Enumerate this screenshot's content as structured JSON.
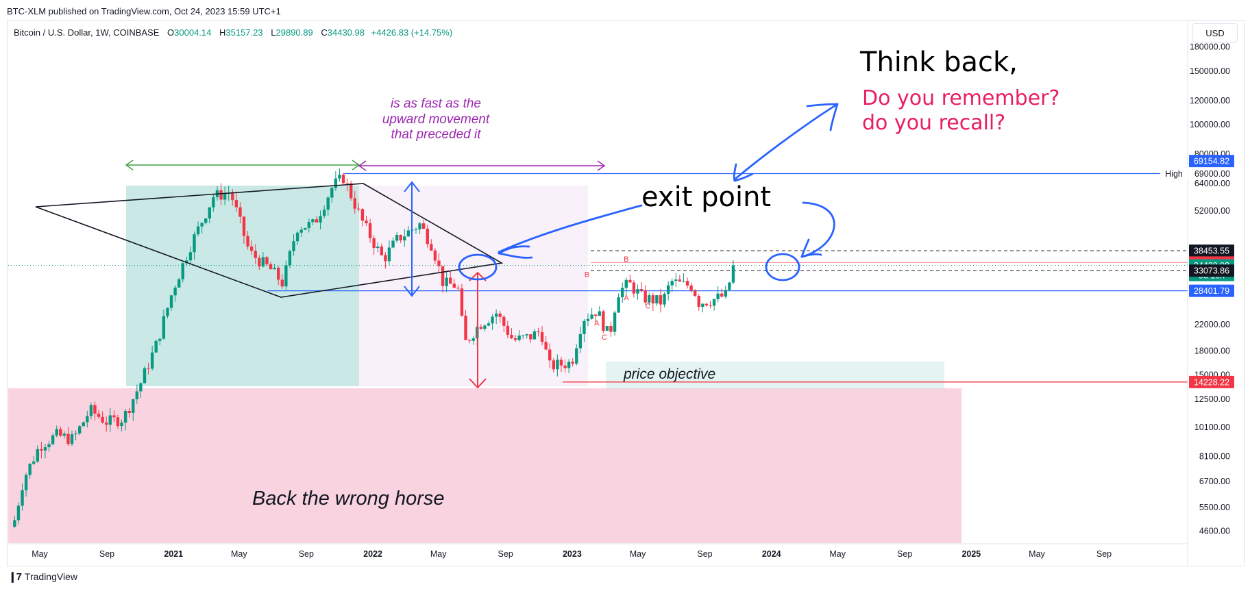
{
  "header": {
    "published": "BTC-XLM published on TradingView.com, Oct 24, 2023 15:59 UTC+1",
    "symbol": "Bitcoin / U.S. Dollar, 1W, COINBASE",
    "open_label": "O",
    "open": "30004.14",
    "high_label": "H",
    "high": "35157.23",
    "low_label": "L",
    "low": "29890.89",
    "close_label": "C",
    "close": "34430.98",
    "change": "+4426.83 (+14.75%)",
    "currency": "USD"
  },
  "footer": {
    "brand": "TradingView",
    "logo": "tradingview-logo-icon"
  },
  "chart_data": {
    "type": "candlestick",
    "symbol": "BTC/USD",
    "interval": "1W",
    "y_scale": "log",
    "ylim": [
      4200,
      220000
    ],
    "y_ticks": [
      4600,
      5500,
      6700,
      8100,
      10100,
      12500,
      15000,
      18000,
      22000,
      28000,
      52000,
      64000,
      80000,
      100000,
      120000,
      150000,
      180000
    ],
    "y_tick_labels": [
      "4600.00",
      "5500.00",
      "6700.00",
      "8100.00",
      "10100.00",
      "12500.00",
      "15000.00",
      "18000.00",
      "22000.00",
      "28000.00",
      "52000.00",
      "64000.00",
      "80000.00",
      "100000.00",
      "120000.00",
      "150000.00",
      "180000.00"
    ],
    "x_ticks": [
      {
        "label": "May",
        "date": "2020-05",
        "bold": false
      },
      {
        "label": "Sep",
        "date": "2020-09",
        "bold": false
      },
      {
        "label": "2021",
        "date": "2021-01",
        "bold": true
      },
      {
        "label": "May",
        "date": "2021-05",
        "bold": false
      },
      {
        "label": "Sep",
        "date": "2021-09",
        "bold": false
      },
      {
        "label": "2022",
        "date": "2022-01",
        "bold": true
      },
      {
        "label": "May",
        "date": "2022-05",
        "bold": false
      },
      {
        "label": "Sep",
        "date": "2022-09",
        "bold": false
      },
      {
        "label": "2023",
        "date": "2023-01",
        "bold": true
      },
      {
        "label": "May",
        "date": "2023-05",
        "bold": false
      },
      {
        "label": "Sep",
        "date": "2023-09",
        "bold": false
      },
      {
        "label": "2024",
        "date": "2024-01",
        "bold": true
      },
      {
        "label": "May",
        "date": "2024-05",
        "bold": false
      },
      {
        "label": "Sep",
        "date": "2024-09",
        "bold": false
      },
      {
        "label": "2025",
        "date": "2025-01",
        "bold": true
      },
      {
        "label": "May",
        "date": "2025-05",
        "bold": false
      },
      {
        "label": "Sep",
        "date": "2025-09",
        "bold": false
      }
    ],
    "price_path": [
      [
        "2020-03-16",
        5000
      ],
      [
        "2020-04-01",
        6800
      ],
      [
        "2020-05-01",
        8800
      ],
      [
        "2020-06-01",
        9500
      ],
      [
        "2020-07-01",
        9200
      ],
      [
        "2020-08-01",
        11500
      ],
      [
        "2020-09-01",
        10500
      ],
      [
        "2020-10-01",
        10800
      ],
      [
        "2020-11-01",
        14000
      ],
      [
        "2020-12-01",
        19000
      ],
      [
        "2021-01-01",
        29000
      ],
      [
        "2021-02-01",
        40000
      ],
      [
        "2021-03-15",
        58000
      ],
      [
        "2021-04-15",
        60000
      ],
      [
        "2021-05-20",
        38000
      ],
      [
        "2021-07-01",
        33000
      ],
      [
        "2021-07-20",
        30000
      ],
      [
        "2021-08-15",
        46000
      ],
      [
        "2021-09-15",
        47000
      ],
      [
        "2021-10-20",
        63000
      ],
      [
        "2021-11-08",
        67000
      ],
      [
        "2021-12-15",
        47000
      ],
      [
        "2022-01-20",
        36000
      ],
      [
        "2022-02-15",
        42000
      ],
      [
        "2022-03-28",
        47000
      ],
      [
        "2022-04-20",
        40000
      ],
      [
        "2022-05-10",
        30000
      ],
      [
        "2022-06-05",
        29500
      ],
      [
        "2022-06-18",
        19000
      ],
      [
        "2022-07-15",
        22000
      ],
      [
        "2022-08-15",
        24000
      ],
      [
        "2022-09-15",
        19500
      ],
      [
        "2022-10-15",
        20000
      ],
      [
        "2022-11-05",
        21000
      ],
      [
        "2022-11-20",
        16000
      ],
      [
        "2022-12-31",
        16500
      ],
      [
        "2023-01-20",
        23000
      ],
      [
        "2023-02-15",
        24500
      ],
      [
        "2023-03-10",
        20000
      ],
      [
        "2023-03-25",
        28000
      ],
      [
        "2023-04-15",
        30000
      ],
      [
        "2023-05-10",
        27000
      ],
      [
        "2023-06-15",
        26000
      ],
      [
        "2023-07-01",
        30500
      ],
      [
        "2023-07-20",
        29800
      ],
      [
        "2023-08-10",
        29500
      ],
      [
        "2023-08-20",
        26000
      ],
      [
        "2023-09-15",
        26500
      ],
      [
        "2023-10-10",
        27500
      ],
      [
        "2023-10-24",
        34430
      ]
    ],
    "price_labels": [
      {
        "value": 69154.82,
        "text": "69154.82",
        "bg": "#2962ff",
        "color": "#ffffff"
      },
      {
        "value": 38453.55,
        "text": "38453.55",
        "bg": "#131722",
        "color": "#ffffff"
      },
      {
        "value": 35176.2,
        "text": "35176.20",
        "bg": "#f23645",
        "color": "#ffffff"
      },
      {
        "value": 34430.98,
        "text": "34430.98",
        "sub": "5d 10h",
        "bg": "#089981",
        "color": "#ffffff"
      },
      {
        "value": 33073.86,
        "text": "33073.86",
        "bg": "#131722",
        "color": "#ffffff"
      },
      {
        "value": 28401.79,
        "text": "28401.79",
        "bg": "#2962ff",
        "color": "#ffffff"
      },
      {
        "value": 14228.22,
        "text": "14228.22",
        "bg": "#f23645",
        "color": "#ffffff"
      }
    ],
    "horizontal_lines": [
      {
        "name": "high",
        "value": 69000,
        "label_right": "High",
        "label_axis": "69000.00",
        "color": "#2962ff",
        "from": "2021-11-08"
      },
      {
        "name": "support",
        "value": 28401.79,
        "color": "#2962ff",
        "from": "2021-06-22"
      },
      {
        "name": "target",
        "value": 14228.22,
        "color": "#f23645",
        "from": "2022-12-15"
      }
    ],
    "dashed_levels": [
      38453.55,
      33073.86
    ],
    "annotations": {
      "think_back": "Think back,",
      "remember": "Do you remember?",
      "recall": "do you recall?",
      "exit_point": "exit point",
      "fast_1": "is as fast as the",
      "fast_2": "upward movement",
      "fast_3": "that preceded it",
      "price_objective": "price objective",
      "wrong_horse": "Back the wrong horse",
      "wave_labels": [
        {
          "t": "B",
          "date": "2023-01-28",
          "price": 31500
        },
        {
          "t": "A",
          "date": "2023-02-15",
          "price": 21800
        },
        {
          "t": "C",
          "date": "2023-03-01",
          "price": 19600
        },
        {
          "t": "B",
          "date": "2023-04-10",
          "price": 35400
        },
        {
          "t": "A",
          "date": "2023-04-10",
          "price": 26400
        },
        {
          "t": "C",
          "date": "2023-05-20",
          "price": 24800
        }
      ]
    },
    "colors": {
      "up": "#089981",
      "down": "#f23645",
      "blue": "#2962ff",
      "pen": "#2962ff",
      "magenta": "#9c27b0",
      "green_arrow": "#43a047",
      "pink_text": "#e91e63"
    }
  }
}
